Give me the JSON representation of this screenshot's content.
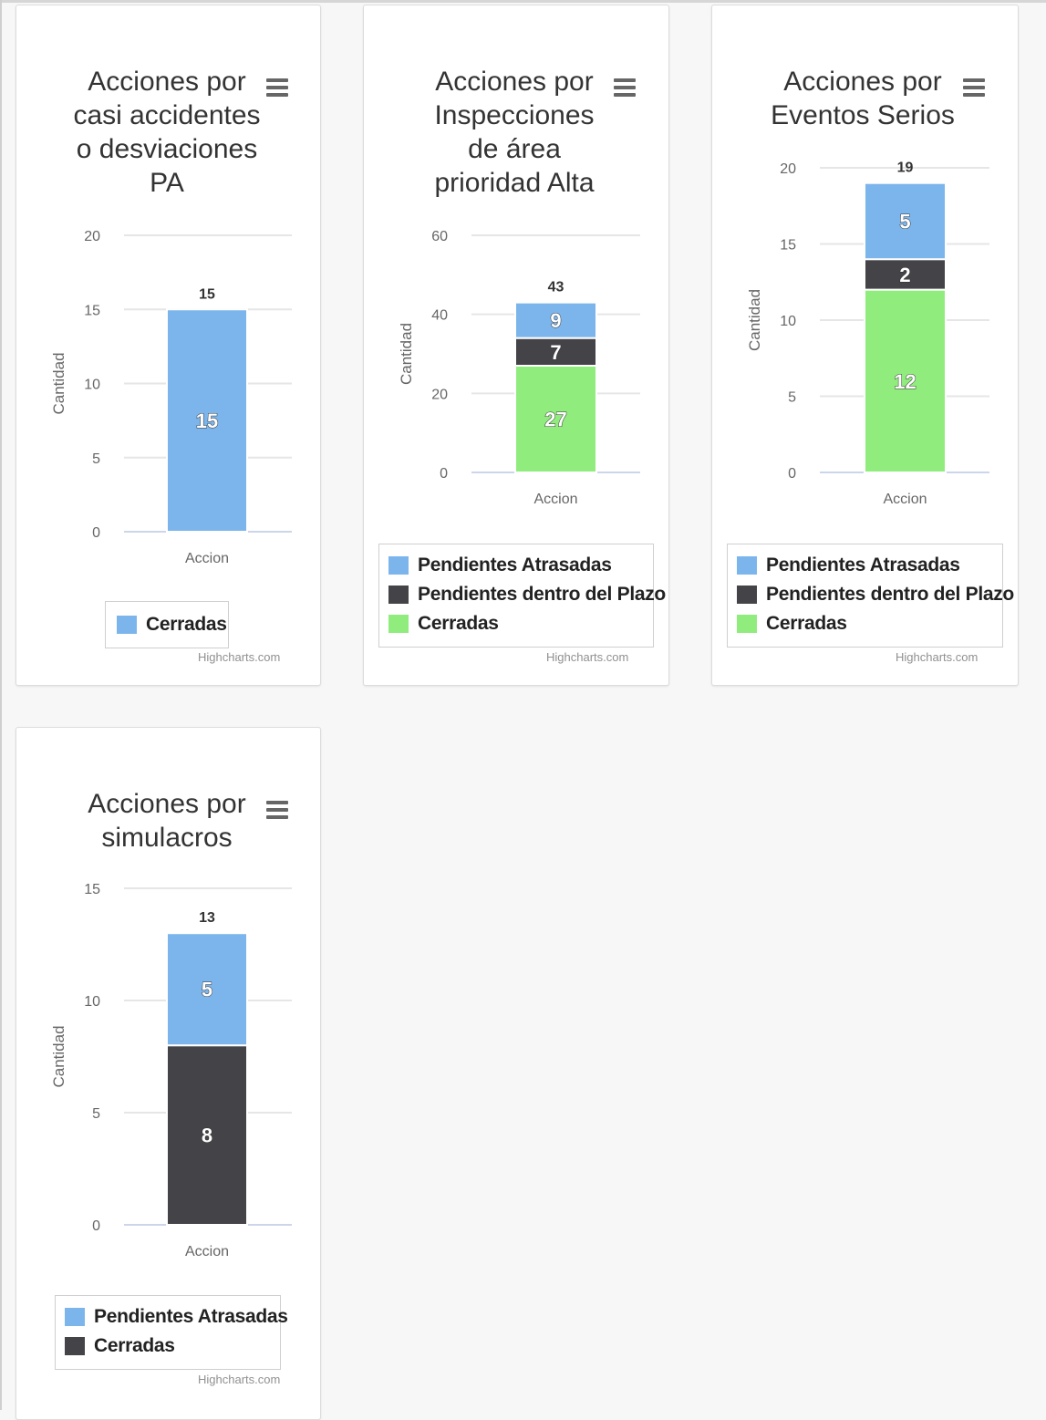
{
  "colors": {
    "pendientes_atrasadas": "#7cb5ec",
    "pendientes_dentro_plazo": "#434348",
    "cerradas": "#90ed7d",
    "grid": "#e6e6e6",
    "axis_text": "#666666",
    "stack_total": "#333333"
  },
  "menu_icon": "hamburger-menu-icon",
  "charts": [
    {
      "title_lines": [
        "Acciones por",
        "casi accidentes",
        "o desviaciones",
        "PA"
      ],
      "legend": [
        "Cerradas"
      ],
      "credits": "Highcharts.com"
    },
    {
      "title_lines": [
        "Acciones por",
        "Inspecciones",
        "de área",
        "prioridad Alta"
      ],
      "legend": [
        "Pendientes Atrasadas",
        "Pendientes dentro del Plazo",
        "Cerradas"
      ],
      "credits": "Highcharts.com"
    },
    {
      "title_lines": [
        "Acciones por",
        "Eventos Serios"
      ],
      "legend": [
        "Pendientes Atrasadas",
        "Pendientes dentro del Plazo",
        "Cerradas"
      ],
      "credits": "Highcharts.com"
    },
    {
      "title_lines": [
        "Acciones por",
        "simulacros"
      ],
      "legend": [
        "Pendientes Atrasadas",
        "Cerradas"
      ],
      "credits": "Highcharts.com"
    }
  ],
  "chart_data": [
    {
      "type": "bar",
      "stacked": true,
      "categories": [
        "Accion"
      ],
      "ylabel": "Cantidad",
      "ylim": [
        0,
        20
      ],
      "yticks": [
        0,
        5,
        10,
        15,
        20
      ],
      "stack_total": "15",
      "series": [
        {
          "name": "Cerradas",
          "values": [
            15
          ],
          "color": "#7cb5ec"
        }
      ]
    },
    {
      "type": "bar",
      "stacked": true,
      "categories": [
        "Accion"
      ],
      "ylabel": "Cantidad",
      "ylim": [
        0,
        60
      ],
      "yticks": [
        0,
        20,
        40,
        60
      ],
      "stack_total": "43",
      "series": [
        {
          "name": "Cerradas",
          "values": [
            27
          ],
          "color": "#90ed7d"
        },
        {
          "name": "Pendientes dentro del Plazo",
          "values": [
            7
          ],
          "color": "#434348"
        },
        {
          "name": "Pendientes Atrasadas",
          "values": [
            9
          ],
          "color": "#7cb5ec"
        }
      ]
    },
    {
      "type": "bar",
      "stacked": true,
      "categories": [
        "Accion"
      ],
      "ylabel": "Cantidad",
      "ylim": [
        0,
        20
      ],
      "yticks": [
        0,
        5,
        10,
        15,
        20
      ],
      "stack_total": "19",
      "series": [
        {
          "name": "Cerradas",
          "values": [
            12
          ],
          "color": "#90ed7d"
        },
        {
          "name": "Pendientes dentro del Plazo",
          "values": [
            2
          ],
          "color": "#434348"
        },
        {
          "name": "Pendientes Atrasadas",
          "values": [
            5
          ],
          "color": "#7cb5ec"
        }
      ]
    },
    {
      "type": "bar",
      "stacked": true,
      "categories": [
        "Accion"
      ],
      "ylabel": "Cantidad",
      "ylim": [
        0,
        15
      ],
      "yticks": [
        0,
        5,
        10,
        15
      ],
      "stack_total": "13",
      "series": [
        {
          "name": "Cerradas",
          "values": [
            8
          ],
          "color": "#434348"
        },
        {
          "name": "Pendientes Atrasadas",
          "values": [
            5
          ],
          "color": "#7cb5ec"
        }
      ]
    }
  ]
}
